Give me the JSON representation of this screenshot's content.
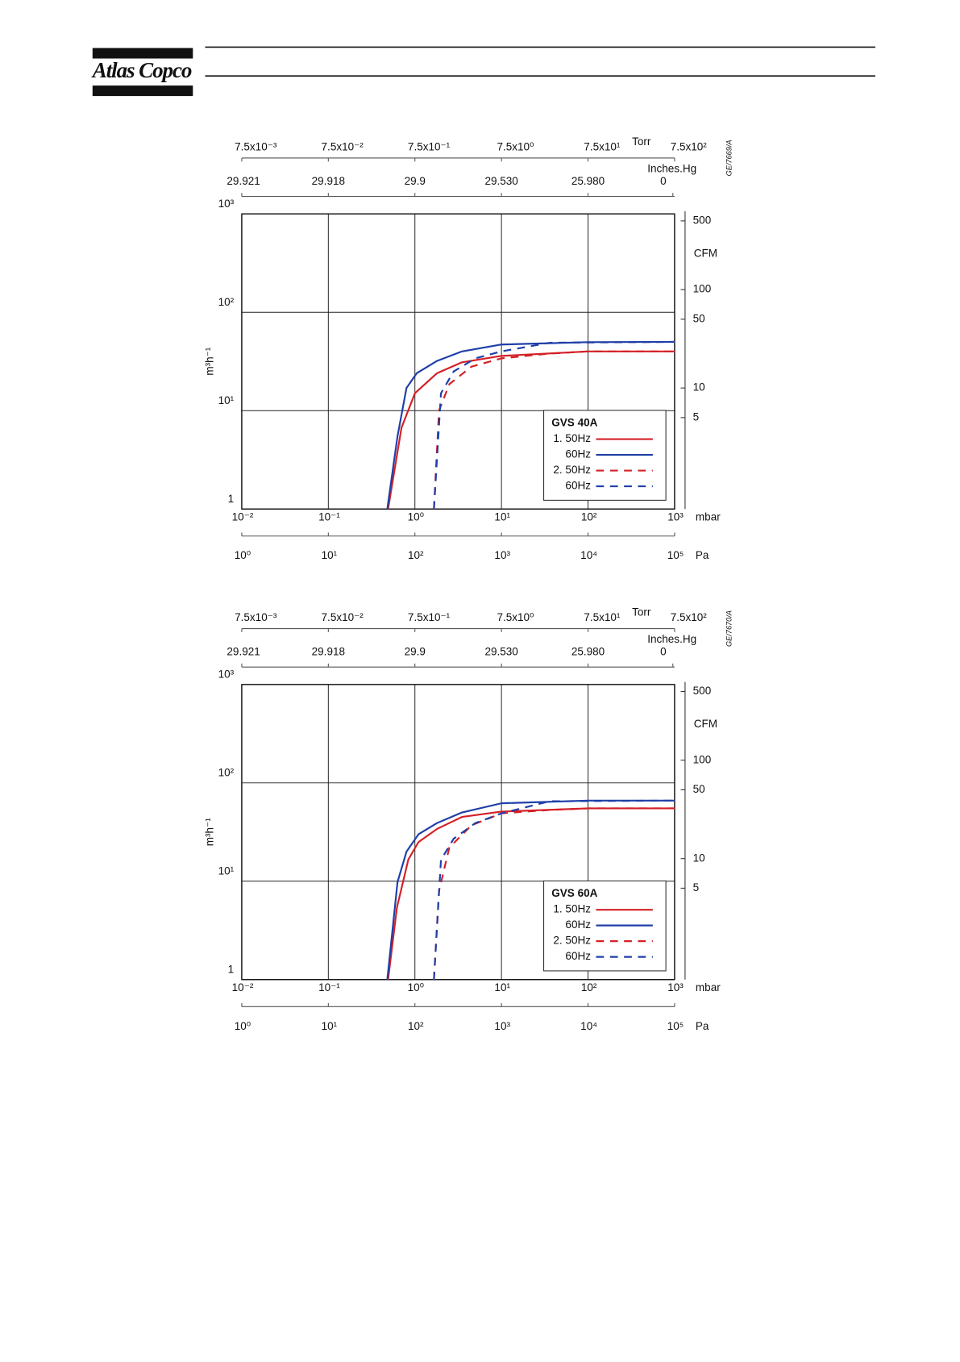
{
  "header": {
    "logo": "Atlas Copco"
  },
  "chart_data": [
    {
      "type": "line",
      "code": "GE/7669/A",
      "legend_title": "GVS 40A",
      "legend": "lower right",
      "grid": true,
      "xscale": "log",
      "yscale": "log",
      "x_label": "mbar",
      "y_label": "m³h⁻¹",
      "xlim": [
        0.01,
        1000
      ],
      "xticks": [
        {
          "value": 0.01,
          "label": "10⁻²"
        },
        {
          "value": 0.1,
          "label": "10⁻¹"
        },
        {
          "value": 1,
          "label": "10⁰"
        },
        {
          "value": 10,
          "label": "10¹"
        },
        {
          "value": 100,
          "label": "10²"
        },
        {
          "value": 1000,
          "label": "10³"
        }
      ],
      "ylim": [
        1,
        1000
      ],
      "yticks": [
        1,
        {
          "value": 10,
          "label": "10¹"
        },
        {
          "value": 100,
          "label": "10²"
        },
        {
          "value": 1000,
          "label": "10³"
        }
      ],
      "y2_label": "CFM",
      "y2lim": [
        0.5886,
        588.6
      ],
      "y2ticks": [
        5,
        10,
        50,
        100,
        500
      ],
      "x2_label": "Torr",
      "x2lim": [
        0.0075,
        750
      ],
      "x2ticks": [
        {
          "value": 0.0075,
          "label": "7.5x10⁻³"
        },
        {
          "value": 0.075,
          "label": "7.5x10⁻²"
        },
        {
          "value": 0.75,
          "label": "7.5x10⁻¹"
        },
        {
          "value": 7.5,
          "label": "7.5x10⁰"
        },
        {
          "value": 75,
          "label": "7.5x10¹"
        },
        {
          "value": 750,
          "label": "7.5x10²"
        }
      ],
      "x3_label": "Pa",
      "x3lim": [
        1,
        100000
      ],
      "x3ticks": [
        {
          "value": 1,
          "label": "10⁰"
        },
        {
          "value": 10,
          "label": "10¹"
        },
        {
          "value": 100,
          "label": "10²"
        },
        {
          "value": 1000,
          "label": "10³"
        },
        {
          "value": 10000,
          "label": "10⁴"
        },
        {
          "value": 100000,
          "label": "10⁵"
        }
      ],
      "x4_label": "Inches.Hg",
      "x4ticks": [
        29.921,
        29.918,
        29.9,
        {
          "value": 29.53,
          "label": "29.530"
        },
        {
          "value": 25.98,
          "label": "25.980"
        },
        0
      ],
      "series": [
        {
          "name": "1. 50Hz",
          "color": "#d42027",
          "dash": false,
          "x": [
            0.49,
            0.7,
            1.0,
            1.8,
            3.5,
            10,
            100,
            1000
          ],
          "values": [
            1,
            6.7,
            15,
            24,
            31,
            36,
            40,
            40
          ]
        },
        {
          "name": "60Hz",
          "color": "#1f3fa8",
          "dash": false,
          "x": [
            0.48,
            0.63,
            0.8,
            1.05,
            1.8,
            3.5,
            10,
            100,
            1000
          ],
          "values": [
            1,
            5.5,
            17,
            24,
            32,
            40,
            47,
            49.7,
            50
          ]
        },
        {
          "name": "2. 50Hz",
          "color": "#d42027",
          "dash": true,
          "x": [
            1.66,
            1.9,
            2.5,
            4.5,
            10,
            36,
            100,
            1000
          ],
          "values": [
            1,
            10,
            18.6,
            28,
            34,
            38,
            40,
            40
          ]
        },
        {
          "name": "60Hz",
          "color": "#1f3fa8",
          "dash": true,
          "x": [
            1.66,
            2.0,
            2.8,
            5,
            10,
            36,
            1000
          ],
          "values": [
            1,
            15,
            25,
            34,
            40,
            49,
            50
          ]
        }
      ]
    },
    {
      "type": "line",
      "code": "GE/7670/A",
      "legend_title": "GVS 60A",
      "legend": "lower right",
      "grid": true,
      "xscale": "log",
      "yscale": "log",
      "x_label": "mbar",
      "y_label": "m³h⁻¹",
      "xlim": [
        0.01,
        1000
      ],
      "xticks": [
        {
          "value": 0.01,
          "label": "10⁻²"
        },
        {
          "value": 0.1,
          "label": "10⁻¹"
        },
        {
          "value": 1,
          "label": "10⁰"
        },
        {
          "value": 10,
          "label": "10¹"
        },
        {
          "value": 100,
          "label": "10²"
        },
        {
          "value": 1000,
          "label": "10³"
        }
      ],
      "ylim": [
        1,
        1000
      ],
      "yticks": [
        1,
        {
          "value": 10,
          "label": "10¹"
        },
        {
          "value": 100,
          "label": "10²"
        },
        {
          "value": 1000,
          "label": "10³"
        }
      ],
      "y2_label": "CFM",
      "y2lim": [
        0.5886,
        588.6
      ],
      "y2ticks": [
        5,
        10,
        50,
        100,
        500
      ],
      "x2_label": "Torr",
      "x2lim": [
        0.0075,
        750
      ],
      "x2ticks": [
        {
          "value": 0.0075,
          "label": "7.5x10⁻³"
        },
        {
          "value": 0.075,
          "label": "7.5x10⁻²"
        },
        {
          "value": 0.75,
          "label": "7.5x10⁻¹"
        },
        {
          "value": 7.5,
          "label": "7.5x10⁰"
        },
        {
          "value": 75,
          "label": "7.5x10¹"
        },
        {
          "value": 750,
          "label": "7.5x10²"
        }
      ],
      "x3_label": "Pa",
      "x3lim": [
        1,
        100000
      ],
      "x3ticks": [
        {
          "value": 1,
          "label": "10⁰"
        },
        {
          "value": 10,
          "label": "10¹"
        },
        {
          "value": 100,
          "label": "10²"
        },
        {
          "value": 1000,
          "label": "10³"
        },
        {
          "value": 10000,
          "label": "10⁴"
        },
        {
          "value": 100000,
          "label": "10⁵"
        }
      ],
      "x4_label": "Inches.Hg",
      "x4ticks": [
        29.921,
        29.918,
        29.9,
        {
          "value": 29.53,
          "label": "29.530"
        },
        {
          "value": 25.98,
          "label": "25.980"
        },
        0
      ],
      "series": [
        {
          "name": "1. 50Hz",
          "color": "#d42027",
          "dash": false,
          "x": [
            0.49,
            0.62,
            0.84,
            1.1,
            1.8,
            3.5,
            10,
            100,
            1000
          ],
          "values": [
            1,
            5.4,
            16.6,
            25,
            34,
            45,
            51,
            55,
            55
          ]
        },
        {
          "name": "60Hz",
          "color": "#1f3fa8",
          "dash": false,
          "x": [
            0.48,
            0.63,
            0.8,
            1.1,
            1.8,
            3.5,
            10,
            100,
            1000
          ],
          "values": [
            1,
            9.8,
            20,
            30,
            39,
            50,
            62,
            66,
            66
          ]
        },
        {
          "name": "2. 50Hz",
          "color": "#d42027",
          "dash": true,
          "x": [
            1.66,
            1.9,
            2.5,
            4.5,
            10,
            36,
            100,
            1000
          ],
          "values": [
            1,
            8,
            22,
            37,
            49,
            53,
            55,
            55
          ]
        },
        {
          "name": "60Hz",
          "color": "#1f3fa8",
          "dash": true,
          "x": [
            1.66,
            2.0,
            2.8,
            5,
            10,
            36,
            1000
          ],
          "values": [
            1,
            16.5,
            27,
            39,
            49,
            65,
            66
          ]
        }
      ]
    }
  ]
}
